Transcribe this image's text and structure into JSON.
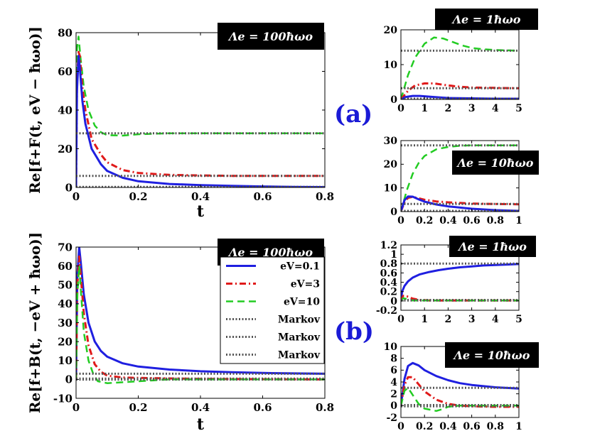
{
  "figure": {
    "label_a": "(a)",
    "label_b": "(b)",
    "label_color": "#1a1ad6"
  },
  "colors": {
    "blue": "#1f1fe0",
    "red": "#e01a1a",
    "green": "#22cc22",
    "gray": "#555555",
    "box": "#000000"
  },
  "chart_data": [
    {
      "id": "a_main",
      "type": "line",
      "title": "Λe = 100ħωo",
      "ylabel": "Re[f+F(t, eV − ħωo)]",
      "xlabel": "t",
      "xlim": [
        0,
        0.8
      ],
      "ylim": [
        0,
        80
      ],
      "xticks": [
        0,
        0.2,
        0.4,
        0.6,
        0.8
      ],
      "xtick_labels": [
        "0",
        "0.2",
        "0.4",
        "0.6",
        "0.8"
      ],
      "yticks": [
        0,
        20,
        40,
        60,
        80
      ],
      "ytick_labels": [
        "0",
        "20",
        "40",
        "60",
        "80"
      ],
      "series": [
        {
          "name": "eV=10",
          "style": "green",
          "x": [
            0,
            0.003,
            0.008,
            0.015,
            0.025,
            0.04,
            0.06,
            0.08,
            0.1,
            0.15,
            0.2,
            0.3,
            0.4,
            0.5,
            0.6,
            0.7,
            0.8
          ],
          "y": [
            0,
            72,
            78,
            66,
            52,
            40,
            32,
            28.5,
            27,
            26.8,
            27.5,
            28,
            28,
            28,
            28,
            28,
            28
          ]
        },
        {
          "name": "eV=3",
          "style": "red",
          "x": [
            0,
            0.003,
            0.008,
            0.012,
            0.02,
            0.03,
            0.05,
            0.08,
            0.1,
            0.15,
            0.2,
            0.3,
            0.4,
            0.5,
            0.6,
            0.7,
            0.8
          ],
          "y": [
            0,
            55,
            70,
            68,
            52,
            40,
            25,
            17,
            13,
            9,
            7.5,
            6.5,
            6.2,
            6,
            6,
            6,
            6
          ]
        },
        {
          "name": "eV=0.1",
          "style": "blue",
          "x": [
            0,
            0.003,
            0.008,
            0.012,
            0.02,
            0.03,
            0.05,
            0.08,
            0.1,
            0.15,
            0.2,
            0.3,
            0.4,
            0.5,
            0.6,
            0.7,
            0.8
          ],
          "y": [
            0,
            50,
            68,
            62,
            45,
            33,
            20,
            12,
            8.5,
            5,
            3.2,
            1.8,
            1.2,
            0.8,
            0.5,
            0.3,
            0.2
          ]
        },
        {
          "name": "Markov",
          "style": "gray",
          "x": [
            0,
            0.8
          ],
          "y": [
            28,
            28
          ]
        },
        {
          "name": "Markov",
          "style": "gray",
          "x": [
            0,
            0.8
          ],
          "y": [
            6,
            6
          ]
        },
        {
          "name": "Markov",
          "style": "gray",
          "x": [
            0,
            0.8
          ],
          "y": [
            0.3,
            0.3
          ]
        }
      ]
    },
    {
      "id": "a_top",
      "type": "line",
      "title": "Λe = 1ħωo",
      "xlim": [
        0,
        5
      ],
      "ylim": [
        0,
        20
      ],
      "xticks": [
        0,
        1,
        2,
        3,
        4,
        5
      ],
      "xtick_labels": [
        "0",
        "1",
        "2",
        "3",
        "4",
        "5"
      ],
      "yticks": [
        0,
        10,
        20
      ],
      "ytick_labels": [
        "0",
        "10",
        "20"
      ],
      "series": [
        {
          "name": "eV=10",
          "style": "green",
          "x": [
            0,
            0.3,
            0.6,
            1,
            1.4,
            1.8,
            2.2,
            2.6,
            3,
            3.5,
            4,
            5
          ],
          "y": [
            0,
            7,
            12,
            16,
            17.8,
            17.5,
            16.5,
            15.5,
            14.8,
            14.4,
            14.2,
            14
          ]
        },
        {
          "name": "eV=3",
          "style": "red",
          "x": [
            0,
            0.3,
            0.6,
            1,
            1.4,
            1.8,
            2.4,
            3,
            4,
            5
          ],
          "y": [
            0,
            2.5,
            4,
            4.6,
            4.6,
            4.2,
            3.7,
            3.4,
            3.3,
            3.2
          ]
        },
        {
          "name": "eV=0.1",
          "style": "blue",
          "x": [
            0,
            0.2,
            0.5,
            0.8,
            1.2,
            1.6,
            2,
            3,
            4,
            5
          ],
          "y": [
            0,
            0.7,
            1,
            1,
            0.8,
            0.6,
            0.4,
            0.3,
            0.2,
            0.2
          ]
        },
        {
          "name": "Markov",
          "style": "gray",
          "x": [
            0,
            5
          ],
          "y": [
            14,
            14
          ]
        },
        {
          "name": "Markov",
          "style": "gray",
          "x": [
            0,
            5
          ],
          "y": [
            3.2,
            3.2
          ]
        },
        {
          "name": "Markov",
          "style": "gray",
          "x": [
            0,
            5
          ],
          "y": [
            0.2,
            0.2
          ]
        }
      ]
    },
    {
      "id": "a_bot",
      "type": "line",
      "title": "Λe = 10ħωo",
      "xlim": [
        0,
        1
      ],
      "ylim": [
        0,
        30
      ],
      "xticks": [
        0,
        0.2,
        0.4,
        0.6,
        0.8,
        1
      ],
      "xtick_labels": [
        "0",
        "0.2",
        "0.4",
        "0.6",
        "0.8",
        "1"
      ],
      "yticks": [
        0,
        10,
        20,
        30
      ],
      "ytick_labels": [
        "0",
        "10",
        "20",
        "30"
      ],
      "series": [
        {
          "name": "eV=10",
          "style": "green",
          "x": [
            0,
            0.05,
            0.1,
            0.15,
            0.2,
            0.3,
            0.4,
            0.5,
            0.6,
            0.8,
            1
          ],
          "y": [
            0,
            9,
            16,
            20.5,
            23.5,
            26.3,
            27.3,
            27.8,
            28,
            28,
            28
          ]
        },
        {
          "name": "eV=3",
          "style": "red",
          "x": [
            0,
            0.03,
            0.06,
            0.1,
            0.15,
            0.2,
            0.3,
            0.4,
            0.6,
            0.8,
            1
          ],
          "y": [
            0,
            4,
            5.8,
            6.2,
            5.6,
            5,
            4.3,
            3.9,
            3.4,
            3.2,
            3.1
          ]
        },
        {
          "name": "eV=0.1",
          "style": "blue",
          "x": [
            0,
            0.03,
            0.06,
            0.1,
            0.15,
            0.2,
            0.3,
            0.4,
            0.6,
            0.8,
            1
          ],
          "y": [
            0,
            4.8,
            6.4,
            6.3,
            5.2,
            4.2,
            3,
            2.2,
            1.2,
            0.6,
            0.3
          ]
        },
        {
          "name": "Markov",
          "style": "gray",
          "x": [
            0,
            1
          ],
          "y": [
            28,
            28
          ]
        },
        {
          "name": "Markov",
          "style": "gray",
          "x": [
            0,
            1
          ],
          "y": [
            3.2,
            3.2
          ]
        },
        {
          "name": "Markov",
          "style": "gray",
          "x": [
            0,
            1
          ],
          "y": [
            0.3,
            0.3
          ]
        }
      ]
    },
    {
      "id": "b_main",
      "type": "line",
      "title": "Λe = 100ħωo",
      "ylabel": "Re[f+B(t, −eV + ħωo)]",
      "xlabel": "t",
      "xlim": [
        0,
        0.8
      ],
      "ylim": [
        -10,
        70
      ],
      "xticks": [
        0,
        0.2,
        0.4,
        0.6,
        0.8
      ],
      "xtick_labels": [
        "0",
        "0.2",
        "0.4",
        "0.6",
        "0.8"
      ],
      "yticks": [
        -10,
        0,
        10,
        20,
        30,
        40,
        50,
        60,
        70
      ],
      "ytick_labels": [
        "-10",
        "0",
        "10",
        "20",
        "30",
        "40",
        "50",
        "60",
        "70"
      ],
      "series": [
        {
          "name": "eV=0.1",
          "style": "blue",
          "x": [
            0,
            0.004,
            0.01,
            0.015,
            0.025,
            0.04,
            0.06,
            0.08,
            0.1,
            0.15,
            0.2,
            0.3,
            0.4,
            0.5,
            0.6,
            0.7,
            0.8
          ],
          "y": [
            0,
            55,
            70,
            62,
            45,
            30,
            20,
            15,
            12,
            8.5,
            6.8,
            5.2,
            4.3,
            3.8,
            3.4,
            3.2,
            3
          ]
        },
        {
          "name": "eV=3",
          "style": "red",
          "x": [
            0,
            0.004,
            0.01,
            0.015,
            0.025,
            0.04,
            0.06,
            0.08,
            0.1,
            0.15,
            0.2,
            0.3,
            0.4,
            0.6,
            0.8
          ],
          "y": [
            0,
            50,
            65,
            55,
            35,
            18,
            8,
            4,
            2,
            1,
            0.8,
            0.5,
            0.3,
            0.1,
            0
          ]
        },
        {
          "name": "eV=10",
          "style": "green",
          "x": [
            0,
            0.004,
            0.01,
            0.015,
            0.025,
            0.04,
            0.055,
            0.07,
            0.1,
            0.15,
            0.2,
            0.25,
            0.3,
            0.4,
            0.6,
            0.8
          ],
          "y": [
            0,
            45,
            60,
            48,
            25,
            10,
            3,
            -1,
            -2,
            -1.5,
            -1,
            -0.5,
            0,
            0,
            0,
            0
          ]
        },
        {
          "name": "Markov",
          "style": "gray",
          "x": [
            0,
            0.8
          ],
          "y": [
            3,
            3
          ]
        },
        {
          "name": "Markov",
          "style": "gray",
          "x": [
            0,
            0.8
          ],
          "y": [
            0.4,
            0.4
          ]
        },
        {
          "name": "Markov",
          "style": "gray",
          "x": [
            0,
            0.8
          ],
          "y": [
            -0.1,
            -0.1
          ]
        }
      ],
      "legend": [
        {
          "label": "eV=0.1",
          "style": "blue"
        },
        {
          "label": "eV=3",
          "style": "red"
        },
        {
          "label": "eV=10",
          "style": "green"
        },
        {
          "label": "Markov",
          "style": "gray"
        },
        {
          "label": "Markov",
          "style": "gray"
        },
        {
          "label": "Markov",
          "style": "gray"
        }
      ]
    },
    {
      "id": "b_top",
      "type": "line",
      "title": "Λe = 1ħωo",
      "xlim": [
        0,
        5
      ],
      "ylim": [
        -0.2,
        1.2
      ],
      "xticks": [
        0,
        1,
        2,
        3,
        4,
        5
      ],
      "xtick_labels": [
        "0",
        "1",
        "2",
        "3",
        "4",
        "5"
      ],
      "yticks": [
        -0.2,
        0,
        0.2,
        0.4,
        0.6,
        0.8,
        1,
        1.2
      ],
      "ytick_labels": [
        "-0.2",
        "0",
        "0.2",
        "0.4",
        "0.6",
        "0.8",
        "1",
        "1.2"
      ],
      "series": [
        {
          "name": "eV=0.1",
          "style": "blue",
          "x": [
            0,
            0.05,
            0.15,
            0.3,
            0.5,
            0.8,
            1.2,
            1.6,
            2,
            2.5,
            3,
            3.5,
            4,
            4.5,
            5
          ],
          "y": [
            0,
            0.2,
            0.32,
            0.42,
            0.5,
            0.57,
            0.62,
            0.66,
            0.69,
            0.72,
            0.74,
            0.76,
            0.77,
            0.78,
            0.79
          ]
        },
        {
          "name": "eV=3",
          "style": "red",
          "x": [
            0,
            0.1,
            0.25,
            0.5,
            0.8,
            1.2,
            2,
            3,
            5
          ],
          "y": [
            0,
            0.11,
            0.1,
            0.05,
            0.02,
            0.01,
            0.01,
            0.01,
            0.01
          ]
        },
        {
          "name": "eV=10",
          "style": "green",
          "x": [
            0,
            0.1,
            0.25,
            0.5,
            0.8,
            1.2,
            2,
            3,
            5
          ],
          "y": [
            0,
            0.06,
            0.04,
            0.01,
            0.01,
            0.01,
            0.01,
            0.01,
            0.01
          ]
        },
        {
          "name": "Markov",
          "style": "gray",
          "x": [
            0,
            5
          ],
          "y": [
            0.8,
            0.8
          ]
        },
        {
          "name": "Markov",
          "style": "gray",
          "x": [
            0,
            5
          ],
          "y": [
            0.02,
            0.02
          ]
        },
        {
          "name": "Markov",
          "style": "gray",
          "x": [
            0,
            5
          ],
          "y": [
            0.01,
            0.01
          ]
        }
      ]
    },
    {
      "id": "b_bot",
      "type": "line",
      "title": "Λe = 10ħωo",
      "xlim": [
        0,
        1
      ],
      "ylim": [
        -2,
        10
      ],
      "xticks": [
        0,
        0.2,
        0.4,
        0.6,
        0.8,
        1
      ],
      "xtick_labels": [
        "0",
        "0.2",
        "0.4",
        "0.6",
        "0.8",
        "1"
      ],
      "yticks": [
        -2,
        0,
        2,
        4,
        6,
        8,
        10
      ],
      "ytick_labels": [
        "-2",
        "0",
        "2",
        "4",
        "6",
        "8",
        "10"
      ],
      "series": [
        {
          "name": "eV=0.1",
          "style": "blue",
          "x": [
            0,
            0.03,
            0.06,
            0.1,
            0.15,
            0.2,
            0.3,
            0.4,
            0.5,
            0.6,
            0.8,
            1
          ],
          "y": [
            0,
            4.5,
            6.7,
            7.2,
            6.8,
            6,
            5,
            4.3,
            3.8,
            3.5,
            3.1,
            2.9
          ]
        },
        {
          "name": "eV=3",
          "style": "red",
          "x": [
            0,
            0.03,
            0.06,
            0.1,
            0.15,
            0.2,
            0.3,
            0.4,
            0.5,
            0.6,
            0.8,
            1
          ],
          "y": [
            0,
            3.5,
            4.8,
            4.8,
            3.6,
            2.4,
            1,
            0.3,
            0,
            -0.1,
            -0.2,
            -0.2
          ]
        },
        {
          "name": "eV=10",
          "style": "green",
          "x": [
            0,
            0.03,
            0.06,
            0.1,
            0.15,
            0.2,
            0.3,
            0.35,
            0.4,
            0.5,
            0.6,
            0.8,
            1
          ],
          "y": [
            0,
            2.5,
            3,
            1.8,
            0.3,
            -0.5,
            -0.9,
            -0.6,
            -0.2,
            0,
            0,
            0,
            0
          ]
        },
        {
          "name": "Markov",
          "style": "gray",
          "x": [
            0,
            1
          ],
          "y": [
            3,
            3
          ]
        },
        {
          "name": "Markov",
          "style": "gray",
          "x": [
            0,
            1
          ],
          "y": [
            0.1,
            0.1
          ]
        },
        {
          "name": "Markov",
          "style": "gray",
          "x": [
            0,
            1
          ],
          "y": [
            -0.1,
            -0.1
          ]
        }
      ]
    }
  ]
}
